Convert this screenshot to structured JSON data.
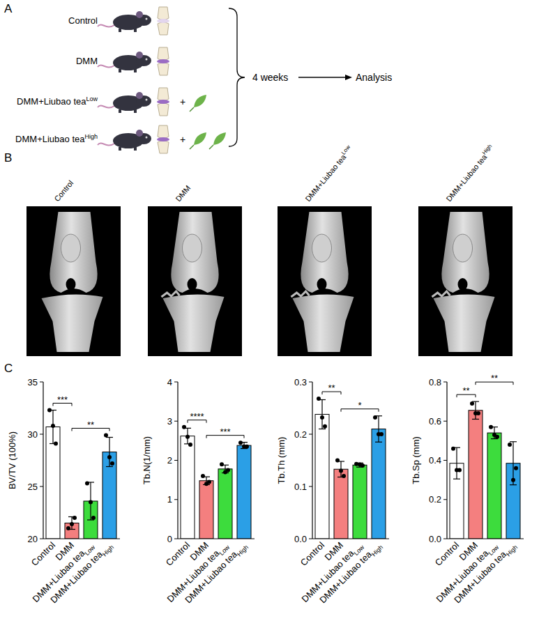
{
  "panel_letters": [
    "A",
    "B",
    "C"
  ],
  "panel_a": {
    "groups": [
      {
        "label": "Control",
        "sup": null,
        "dmm": false,
        "leaves": 0
      },
      {
        "label": "DMM",
        "sup": null,
        "dmm": true,
        "leaves": 0
      },
      {
        "label": "DMM+Liubao tea",
        "sup": "Low",
        "dmm": true,
        "leaves": 1
      },
      {
        "label": "DMM+Liubao tea",
        "sup": "High",
        "dmm": true,
        "leaves": 2
      }
    ],
    "plus": "+",
    "duration": "4 weeks",
    "endpoint": "Analysis"
  },
  "panel_b": {
    "labels": [
      {
        "label": "Control",
        "sup": null
      },
      {
        "label": "DMM",
        "sup": null
      },
      {
        "label": "DMM+Liubao tea",
        "sup": "Low"
      },
      {
        "label": "DMM+Liubao tea",
        "sup": "High"
      }
    ]
  },
  "chart_data": [
    {
      "type": "bar",
      "ylabel": "BV/TV (100%)",
      "categories": [
        "Control",
        "DMM",
        "DMM+Liubao tea",
        "DMM+Liubao tea"
      ],
      "category_subscripts": [
        null,
        null,
        "Low",
        "High"
      ],
      "values": [
        30.7,
        21.5,
        23.6,
        28.3
      ],
      "errors": [
        1.6,
        0.6,
        1.8,
        1.4
      ],
      "points": [
        [
          32.3,
          29.1,
          30.8
        ],
        [
          21.0,
          22.0,
          21.4
        ],
        [
          25.3,
          22.0,
          23.5
        ],
        [
          29.9,
          27.2,
          27.8
        ]
      ],
      "colors": [
        "#ffffff",
        "#f47f7f",
        "#3ddc3d",
        "#2b9fe6"
      ],
      "ylim": [
        20,
        35
      ],
      "yticks": [
        20,
        25,
        30,
        35
      ],
      "comparisons": [
        {
          "from": 0,
          "to": 1,
          "label": "***"
        },
        {
          "from": 1,
          "to": 3,
          "label": "**"
        }
      ]
    },
    {
      "type": "bar",
      "ylabel": "Tb.N(1/mm)",
      "categories": [
        "Control",
        "DMM",
        "DMM+Liubao tea",
        "DMM+Liubao tea"
      ],
      "category_subscripts": [
        null,
        null,
        "Low",
        "High"
      ],
      "values": [
        2.62,
        1.48,
        1.78,
        2.38
      ],
      "errors": [
        0.2,
        0.1,
        0.1,
        0.08
      ],
      "points": [
        [
          2.85,
          2.4,
          2.6
        ],
        [
          1.6,
          1.45,
          1.4
        ],
        [
          1.9,
          1.75,
          1.7
        ],
        [
          2.45,
          2.35,
          2.35
        ]
      ],
      "colors": [
        "#ffffff",
        "#f47f7f",
        "#3ddc3d",
        "#2b9fe6"
      ],
      "ylim": [
        0,
        4
      ],
      "yticks": [
        0,
        1,
        2,
        3,
        4
      ],
      "comparisons": [
        {
          "from": 0,
          "to": 1,
          "label": "****"
        },
        {
          "from": 1,
          "to": 3,
          "label": "***"
        }
      ]
    },
    {
      "type": "bar",
      "ylabel": "Tb.Th (mm)",
      "categories": [
        "Control",
        "DMM",
        "DMM+Liubao tea",
        "DMM+Liubao tea"
      ],
      "category_subscripts": [
        null,
        null,
        "Low",
        "High"
      ],
      "values": [
        0.238,
        0.133,
        0.141,
        0.21
      ],
      "errors": [
        0.028,
        0.015,
        0.004,
        0.025
      ],
      "points": [
        [
          0.268,
          0.215,
          0.232
        ],
        [
          0.15,
          0.12,
          0.13
        ],
        [
          0.143,
          0.14,
          0.142
        ],
        [
          0.232,
          0.2,
          0.2
        ]
      ],
      "colors": [
        "#ffffff",
        "#f47f7f",
        "#3ddc3d",
        "#2b9fe6"
      ],
      "ylim": [
        0,
        0.3
      ],
      "yticks": [
        {
          "value": 0,
          "label": "0.0"
        },
        {
          "value": 0.1,
          "label": "0.1"
        },
        {
          "value": 0.2,
          "label": "0.2"
        },
        {
          "value": 0.3,
          "label": "0.3"
        }
      ],
      "comparisons": [
        {
          "from": 0,
          "to": 1,
          "label": "**"
        },
        {
          "from": 1,
          "to": 3,
          "label": "*"
        }
      ]
    },
    {
      "type": "bar",
      "ylabel": "Tb.Sp (mm)",
      "categories": [
        "Control",
        "DMM",
        "DMM+Liubao tea",
        "DMM+Liubao tea"
      ],
      "category_subscripts": [
        null,
        null,
        "Low",
        "High"
      ],
      "values": [
        0.385,
        0.655,
        0.54,
        0.385
      ],
      "errors": [
        0.08,
        0.045,
        0.03,
        0.11
      ],
      "points": [
        [
          0.46,
          0.35,
          0.35
        ],
        [
          0.69,
          0.64,
          0.64
        ],
        [
          0.57,
          0.52,
          0.53
        ],
        [
          0.48,
          0.36,
          0.3
        ]
      ],
      "colors": [
        "#ffffff",
        "#f47f7f",
        "#3ddc3d",
        "#2b9fe6"
      ],
      "ylim": [
        0,
        0.8
      ],
      "yticks": [
        {
          "value": 0,
          "label": "0.0"
        },
        {
          "value": 0.2,
          "label": "0.2"
        },
        {
          "value": 0.4,
          "label": "0.4"
        },
        {
          "value": 0.6,
          "label": "0.6"
        },
        {
          "value": 0.8,
          "label": "0.8"
        }
      ],
      "comparisons": [
        {
          "from": 0,
          "to": 1,
          "label": "**"
        },
        {
          "from": 1,
          "to": 3,
          "label": "**"
        }
      ]
    }
  ]
}
